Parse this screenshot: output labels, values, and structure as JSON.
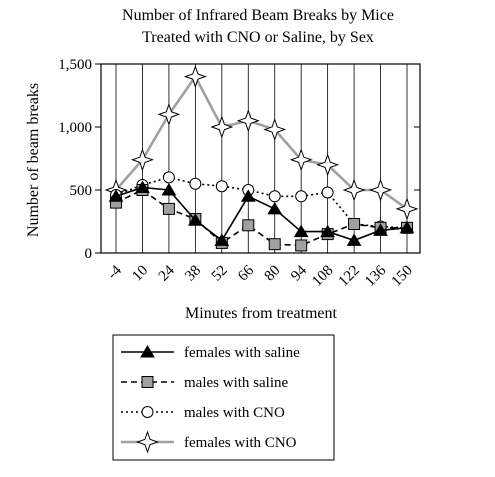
{
  "chart_data": {
    "type": "line",
    "title_lines": [
      "Number of Infrared Beam Breaks by Mice",
      "Treated with CNO or Saline, by Sex"
    ],
    "xlabel": "Minutes from treatment",
    "ylabel": "Number of beam breaks",
    "x": [
      -4,
      10,
      24,
      38,
      52,
      66,
      80,
      94,
      108,
      122,
      136,
      150
    ],
    "x_tick_labels": [
      "-4",
      "10",
      "24",
      "38",
      "52",
      "66",
      "80",
      "94",
      "108",
      "122",
      "136",
      "150"
    ],
    "y_ticks": [
      0,
      500,
      1000,
      1500
    ],
    "y_tick_labels": [
      "0",
      "500",
      "1,000",
      "1,500"
    ],
    "ylim": [
      0,
      1500
    ],
    "grid": "vertical",
    "legend_position": "bottom",
    "series": [
      {
        "name": "females with saline",
        "marker": "triangle",
        "line": "solid",
        "color": "#000000",
        "marker_fill": "#000000",
        "values": [
          450,
          520,
          500,
          260,
          100,
          450,
          350,
          170,
          170,
          100,
          180,
          200
        ]
      },
      {
        "name": "males with saline",
        "marker": "square",
        "line": "dashed",
        "color": "#000000",
        "marker_fill": "#a0a0a0",
        "values": [
          400,
          500,
          350,
          270,
          80,
          220,
          70,
          60,
          150,
          230,
          200,
          200
        ]
      },
      {
        "name": "males with CNO",
        "marker": "circle",
        "line": "dotted",
        "color": "#000000",
        "marker_fill": "#ffffff",
        "values": [
          460,
          540,
          600,
          550,
          530,
          500,
          450,
          450,
          480,
          230,
          210,
          200
        ]
      },
      {
        "name": "females with CNO",
        "marker": "star4",
        "line": "solid",
        "color": "#a0a0a0",
        "marker_fill": "#a0a0a0",
        "values": [
          500,
          740,
          1100,
          1400,
          1000,
          1050,
          980,
          740,
          700,
          500,
          500,
          350
        ]
      }
    ]
  }
}
